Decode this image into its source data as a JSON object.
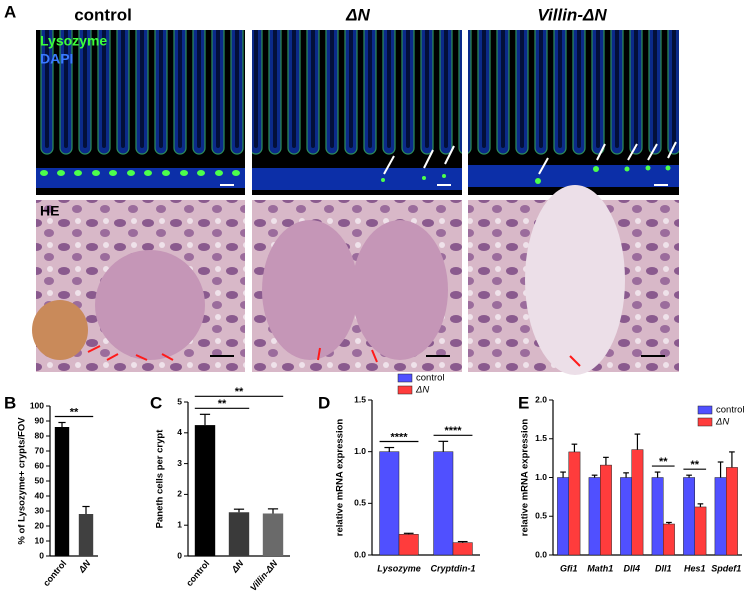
{
  "figure": {
    "panel_labels": [
      "A",
      "B",
      "C",
      "D",
      "E"
    ],
    "columns": [
      "control",
      "ΔN",
      "Villin-ΔN"
    ],
    "stains": [
      "Lysozyme",
      "DAPI"
    ],
    "he_label": "HE"
  },
  "chart_data": [
    {
      "type": "bar",
      "y_label": "% of Lysozyme+ crypts/FOV",
      "categories": [
        "control",
        "ΔN"
      ],
      "values": [
        86,
        28
      ],
      "errors": [
        3,
        5
      ],
      "colors": [
        "#000000",
        "#404040"
      ],
      "ylim": [
        0,
        100
      ],
      "yticks": [
        0,
        10,
        20,
        30,
        40,
        50,
        60,
        70,
        80,
        90,
        100
      ],
      "comparisons": [
        {
          "label": "**",
          "pair": [
            "control",
            "ΔN"
          ]
        }
      ]
    },
    {
      "type": "bar",
      "y_label": "Paneth cells per crypt",
      "categories": [
        "control",
        "ΔN",
        "Villin-ΔN"
      ],
      "values": [
        4.25,
        1.42,
        1.38
      ],
      "errors": [
        0.35,
        0.1,
        0.15
      ],
      "colors": [
        "#000000",
        "#3a3a3a",
        "#6a6a6a"
      ],
      "ylim": [
        0,
        5
      ],
      "yticks": [
        0,
        1,
        2,
        3,
        4,
        5
      ],
      "comparisons": [
        {
          "label": "**",
          "pair": [
            "control",
            "ΔN"
          ]
        },
        {
          "label": "**",
          "pair": [
            "control",
            "Villin-ΔN"
          ]
        }
      ]
    },
    {
      "type": "grouped_bar",
      "y_label": "relative mRNA expression",
      "categories": [
        "Lysozyme",
        "Cryptdin-1"
      ],
      "series": [
        {
          "name": "control",
          "color": "#5050ff",
          "values": [
            1.0,
            1.0
          ],
          "errors": [
            0.04,
            0.1
          ]
        },
        {
          "name": "ΔN",
          "color": "#ff3c3c",
          "values": [
            0.2,
            0.12
          ],
          "errors": [
            0.01,
            0.01
          ]
        }
      ],
      "ylim": [
        0,
        1.5
      ],
      "yticks": [
        {
          "value": 0,
          "label": "0.0"
        },
        0.5,
        {
          "value": 1,
          "label": "1.0"
        },
        1.5
      ],
      "significance": [
        "****",
        "****"
      ]
    },
    {
      "type": "grouped_bar",
      "y_label": "relative mRNA expression",
      "categories": [
        "Gfi1",
        "Math1",
        "Dll4",
        "Dll1",
        "Hes1",
        "Spdef1"
      ],
      "series": [
        {
          "name": "control",
          "color": "#5050ff",
          "values": [
            1.0,
            1.0,
            1.0,
            1.0,
            1.0,
            1.0
          ],
          "errors": [
            0.07,
            0.03,
            0.06,
            0.07,
            0.03,
            0.2
          ]
        },
        {
          "name": "ΔN",
          "color": "#ff3c3c",
          "values": [
            1.33,
            1.16,
            1.36,
            0.4,
            0.62,
            1.13
          ],
          "errors": [
            0.1,
            0.1,
            0.2,
            0.02,
            0.04,
            0.2
          ]
        }
      ],
      "ylim": [
        0,
        2
      ],
      "yticks": [
        {
          "value": 0,
          "label": "0.0"
        },
        0.5,
        {
          "value": 1,
          "label": "1.0"
        },
        1.5,
        {
          "value": 2,
          "label": "2.0"
        }
      ],
      "significance": [
        null,
        null,
        null,
        "**",
        "**",
        null
      ]
    }
  ]
}
